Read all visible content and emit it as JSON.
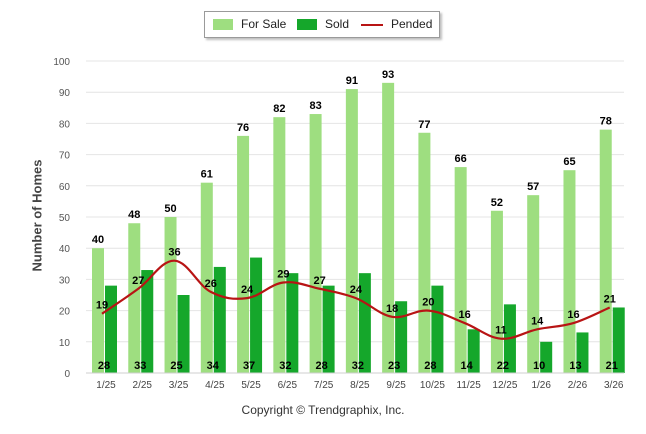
{
  "chart_data": {
    "type": "bar",
    "title": "",
    "xlabel": "",
    "ylabel": "Number of Homes",
    "ylim": [
      0,
      100
    ],
    "yticks": [
      "0",
      "10",
      "20",
      "30",
      "40",
      "50",
      "60",
      "70",
      "80",
      "90",
      "100"
    ],
    "categories": [
      "1/25",
      "2/25",
      "3/25",
      "4/25",
      "5/25",
      "6/25",
      "7/25",
      "8/25",
      "9/25",
      "10/25",
      "11/25",
      "12/25",
      "1/26",
      "2/26",
      "3/26"
    ],
    "series": [
      {
        "name": "For Sale",
        "kind": "bar",
        "color": "#9ede80",
        "values": [
          40,
          48,
          50,
          61,
          76,
          82,
          83,
          91,
          93,
          77,
          66,
          52,
          57,
          65,
          78
        ],
        "labels": [
          "40",
          "48",
          "50",
          "61",
          "76",
          "82",
          "83",
          "91",
          "93",
          "77",
          "66",
          "52",
          "57",
          "65",
          "78"
        ]
      },
      {
        "name": "Sold",
        "kind": "bar",
        "color": "#15a72b",
        "values": [
          28,
          33,
          25,
          34,
          37,
          32,
          28,
          32,
          23,
          28,
          14,
          22,
          10,
          13,
          21
        ],
        "labels": [
          "28",
          "33",
          "25",
          "34",
          "37",
          "32",
          "28",
          "32",
          "23",
          "28",
          "14",
          "22",
          "10",
          "13",
          "21"
        ]
      },
      {
        "name": "Pended",
        "kind": "line",
        "color": "#b81414",
        "values": [
          19,
          27,
          36,
          26,
          24,
          29,
          27,
          24,
          18,
          20,
          16,
          11,
          14,
          16,
          21
        ],
        "labels": [
          "19",
          "27",
          "36",
          "26",
          "24",
          "29",
          "27",
          "24",
          "18",
          "20",
          "16",
          "11",
          "14",
          "16",
          "21"
        ]
      }
    ],
    "legend": {
      "position": "top-center",
      "for_sale": "For Sale",
      "sold": "Sold",
      "pended": "Pended"
    },
    "grid": true
  },
  "footer": {
    "copyright": "Copyright © Trendgraphix, Inc."
  }
}
